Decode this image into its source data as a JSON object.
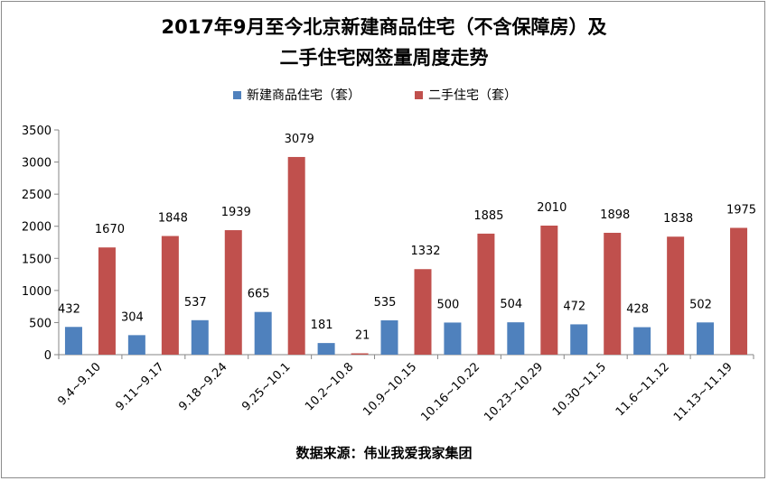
{
  "chart_data": {
    "type": "bar",
    "title_line1": "2017年9月至今北京新建商品住宅（不含保障房）及",
    "title_line2": "二手住宅网签量周度走势",
    "categories": [
      "9.4~9.10",
      "9.11~9.17",
      "9.18~9.24",
      "9.25~10.1",
      "10.2~10.8",
      "10.9~10.15",
      "10.16~10.22",
      "10.23~10.29",
      "10.30~11.5",
      "11.6~11.12",
      "11.13~11.19"
    ],
    "series": [
      {
        "name": "新建商品住宅（套）",
        "color": "#4f81bd",
        "values": [
          432,
          304,
          537,
          665,
          181,
          535,
          500,
          504,
          472,
          428,
          502
        ]
      },
      {
        "name": "二手住宅（套）",
        "color": "#c0504d",
        "values": [
          1670,
          1848,
          1939,
          3079,
          21,
          1332,
          1885,
          2010,
          1898,
          1838,
          1975
        ]
      }
    ],
    "ylim": [
      0,
      3500
    ],
    "yticks": [
      "0",
      "500",
      "1000",
      "1500",
      "2000",
      "2500",
      "3000",
      "3500"
    ],
    "grid": false,
    "legend": "top",
    "source": "数据来源：伟业我爱我家集团"
  }
}
